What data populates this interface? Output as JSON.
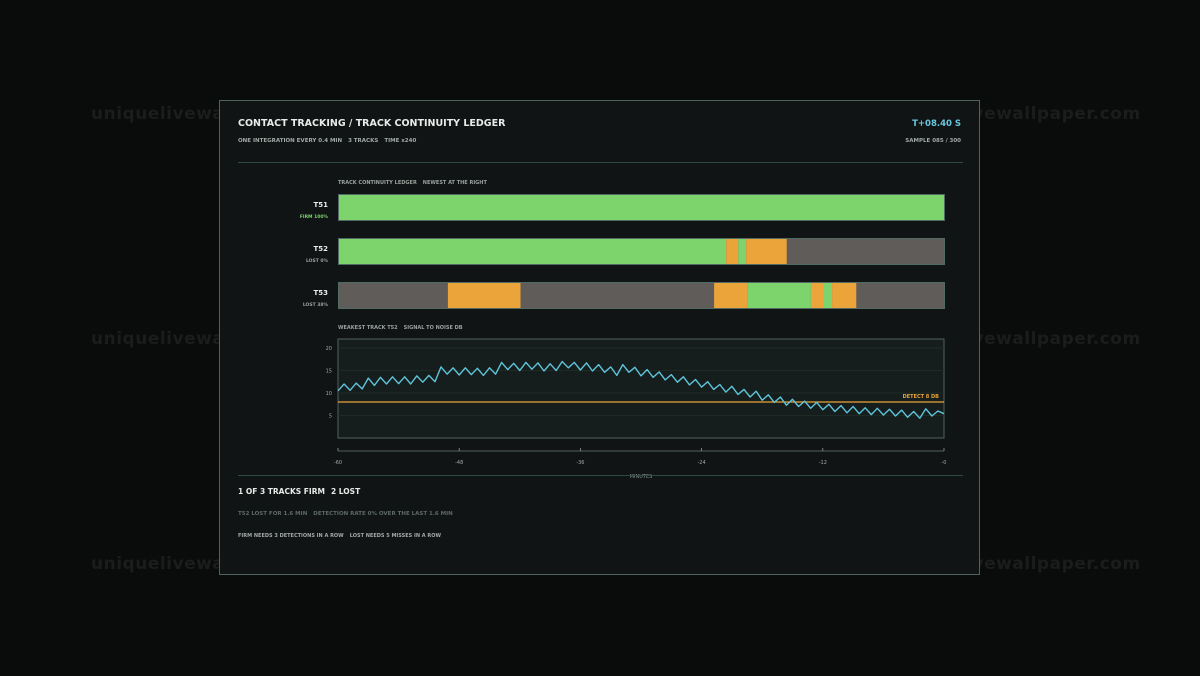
{
  "watermark": "uniquelivewallpaper.com",
  "header": {
    "title": "CONTACT TRACKING / TRACK CONTINUITY LEDGER",
    "timer": "T+08.40 S",
    "subtitle_parts": [
      "ONE INTEGRATION EVERY 0.4 MIN",
      "3 TRACKS",
      "TIME x240"
    ],
    "sample": "SAMPLE 085 / 300"
  },
  "ledger": {
    "caption_parts": [
      "TRACK CONTINUITY LEDGER",
      "NEWEST AT THE RIGHT"
    ],
    "tracks": [
      {
        "name": "T51",
        "status": "FIRM 100%",
        "status_color": "#7dd36c",
        "segments": [
          {
            "state": "firm",
            "from": 0,
            "to": 1
          }
        ]
      },
      {
        "name": "T52",
        "status": "LOST 0%",
        "status_color": "#9aa19d",
        "segments": [
          {
            "state": "firm",
            "from": 0,
            "to": 0.64
          },
          {
            "state": "tentative",
            "from": 0.64,
            "to": 0.66
          },
          {
            "state": "firm",
            "from": 0.66,
            "to": 0.673
          },
          {
            "state": "tentative",
            "from": 0.673,
            "to": 0.74
          }
        ]
      },
      {
        "name": "T53",
        "status": "LOST 38%",
        "status_color": "#9aa19d",
        "segments": [
          {
            "state": "tentative",
            "from": 0.18,
            "to": 0.3
          },
          {
            "state": "tentative",
            "from": 0.62,
            "to": 0.675
          },
          {
            "state": "firm",
            "from": 0.675,
            "to": 0.78
          },
          {
            "state": "tentative",
            "from": 0.78,
            "to": 0.8
          },
          {
            "state": "firm",
            "from": 0.8,
            "to": 0.815
          },
          {
            "state": "tentative",
            "from": 0.815,
            "to": 0.855
          }
        ]
      }
    ],
    "state_colors": {
      "firm": "#7dd36c",
      "tentative": "#eba43a",
      "lost": "#5f5c5a"
    }
  },
  "chart_data": {
    "type": "line",
    "title": "WEAKEST TRACK T52",
    "subtitle": "SIGNAL TO NOISE DB",
    "xlabel": "MINUTES",
    "ylabel": "",
    "xlim": [
      -60,
      0
    ],
    "ylim": [
      0,
      22
    ],
    "xticks": [
      -60,
      -48,
      -36,
      -24,
      -12,
      0
    ],
    "xtick_labels": [
      "-60",
      "-48",
      "-36",
      "-24",
      "-12",
      "-0"
    ],
    "yticks": [
      5,
      10,
      15,
      20
    ],
    "threshold": {
      "value": 8,
      "label": "DETECT 8 DB",
      "color": "#eba43a"
    },
    "line_color": "#5ec4da",
    "grid": true,
    "series": [
      {
        "x": [
          -60,
          -59.4,
          -58.8,
          -58.2,
          -57.6,
          -57,
          -56.4,
          -55.8,
          -55.2,
          -54.6,
          -54,
          -53.4,
          -52.8,
          -52.2,
          -51.6,
          -51,
          -50.4,
          -49.8,
          -49.2,
          -48.6,
          -48,
          -47.4,
          -46.8,
          -46.2,
          -45.6,
          -45,
          -44.4,
          -43.8,
          -43.2,
          -42.6,
          -42,
          -41.4,
          -40.8,
          -40.2,
          -39.6,
          -39,
          -38.4,
          -37.8,
          -37.2,
          -36.6,
          -36,
          -35.4,
          -34.8,
          -34.2,
          -33.6,
          -33,
          -32.4,
          -31.8,
          -31.2,
          -30.6,
          -30,
          -29.4,
          -28.8,
          -28.2,
          -27.6,
          -27,
          -26.4,
          -25.8,
          -25.2,
          -24.6,
          -24,
          -23.4,
          -22.8,
          -22.2,
          -21.6,
          -21,
          -20.4,
          -19.8,
          -19.2,
          -18.6,
          -18,
          -17.4,
          -16.8,
          -16.2,
          -15.6,
          -15,
          -14.4,
          -13.8,
          -13.2,
          -12.6,
          -12,
          -11.4,
          -10.8,
          -10.2,
          -9.6,
          -9,
          -8.4,
          -7.8,
          -7.2,
          -6.6,
          -6,
          -5.4,
          -4.8,
          -4.2,
          -3.6,
          -3,
          -2.4,
          -1.8,
          -1.2,
          -0.6,
          0
        ],
        "y": [
          10.5,
          12.0,
          10.6,
          12.2,
          10.9,
          13.3,
          11.7,
          13.5,
          12.0,
          13.6,
          12.1,
          13.6,
          12.0,
          13.8,
          12.4,
          13.9,
          12.5,
          15.8,
          14.2,
          15.6,
          14.0,
          15.6,
          14.1,
          15.5,
          13.9,
          15.6,
          14.2,
          16.8,
          15.2,
          16.6,
          15.0,
          16.8,
          15.3,
          16.7,
          14.9,
          16.5,
          15.0,
          17.0,
          15.6,
          16.8,
          15.1,
          16.7,
          14.9,
          16.3,
          14.6,
          15.8,
          13.9,
          16.3,
          14.6,
          15.7,
          13.8,
          15.2,
          13.5,
          14.7,
          12.9,
          14.1,
          12.4,
          13.6,
          11.8,
          13.0,
          11.3,
          12.5,
          10.8,
          11.9,
          10.2,
          11.5,
          9.7,
          10.8,
          9.1,
          10.4,
          8.4,
          9.6,
          7.9,
          9.1,
          7.3,
          8.6,
          7.0,
          8.2,
          6.6,
          7.9,
          6.3,
          7.5,
          5.9,
          7.2,
          5.6,
          7.0,
          5.4,
          6.7,
          5.2,
          6.6,
          5.1,
          6.4,
          4.9,
          6.2,
          4.6,
          5.9,
          4.4,
          6.5,
          4.9,
          6.0,
          5.4
        ]
      }
    ]
  },
  "footer": {
    "summary_parts": [
      "1 OF 3 TRACKS FIRM",
      "2 LOST"
    ],
    "detail_parts": [
      "T52 LOST FOR 1.6 MIN",
      "DETECTION RATE 0% OVER THE LAST 1.6 MIN"
    ],
    "rule_parts": [
      "FIRM NEEDS 3 DETECTIONS IN A ROW",
      "LOST NEEDS 5 MISSES IN A ROW"
    ]
  }
}
